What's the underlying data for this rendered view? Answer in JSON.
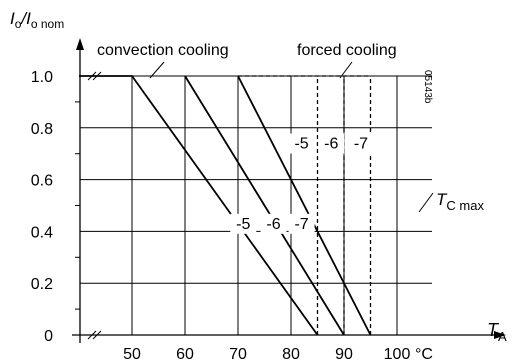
{
  "chart_data": {
    "type": "line",
    "title": "",
    "ylabel_main": "I",
    "ylabel_sub1": "o",
    "ylabel_sep": "/I",
    "ylabel_sub2": "o nom",
    "xlabel_main": "T",
    "xlabel_sub": "A",
    "x_unit": "°C",
    "code": "05143b",
    "region_labels": {
      "convection": "convection cooling",
      "forced": "forced cooling"
    },
    "tc_label_main": "T",
    "tc_label_sub": "C max",
    "xlim": [
      40,
      100
    ],
    "ylim": [
      0,
      1.0
    ],
    "x_ticks": [
      {
        "value": 50,
        "label": "50"
      },
      {
        "value": 60,
        "label": "60"
      },
      {
        "value": 70,
        "label": "70"
      },
      {
        "value": 80,
        "label": "80"
      },
      {
        "value": 90,
        "label": "90"
      },
      {
        "value": 100,
        "label": "100"
      }
    ],
    "y_ticks": [
      {
        "value": 0,
        "label": "0"
      },
      {
        "value": 0.2,
        "label": "0.2"
      },
      {
        "value": 0.4,
        "label": "0.4"
      },
      {
        "value": 0.6,
        "label": "0.6"
      },
      {
        "value": 0.8,
        "label": "0.8"
      },
      {
        "value": 1.0,
        "label": "1.0"
      }
    ],
    "grid": true,
    "series": [
      {
        "x": [
          40,
          50,
          85
        ],
        "y": [
          1.0,
          1.0,
          0.0
        ],
        "style": "solid"
      },
      {
        "x": [
          60,
          90
        ],
        "y": [
          1.0,
          0.0
        ],
        "style": "solid"
      },
      {
        "x": [
          70,
          95
        ],
        "y": [
          1.0,
          0.0
        ],
        "style": "solid"
      },
      {
        "x": [
          70,
          95
        ],
        "y": [
          1.0,
          1.0
        ],
        "style": "dashed"
      },
      {
        "x": [
          85,
          85
        ],
        "y": [
          0.0,
          1.0
        ],
        "style": "dashed"
      },
      {
        "x": [
          90,
          90
        ],
        "y": [
          0.0,
          1.0
        ],
        "style": "dashed"
      },
      {
        "x": [
          95,
          95
        ],
        "y": [
          0.0,
          1.0
        ],
        "style": "dashed"
      }
    ],
    "annotations": [
      {
        "text": "-5",
        "x": 71,
        "y": 0.41
      },
      {
        "text": "-6",
        "x": 76.7,
        "y": 0.41
      },
      {
        "text": "-7",
        "x": 82,
        "y": 0.41
      },
      {
        "text": "-5",
        "x": 82,
        "y": 0.72
      },
      {
        "text": "-6",
        "x": 87.6,
        "y": 0.72
      },
      {
        "text": "-7",
        "x": 93.2,
        "y": 0.72
      }
    ]
  }
}
